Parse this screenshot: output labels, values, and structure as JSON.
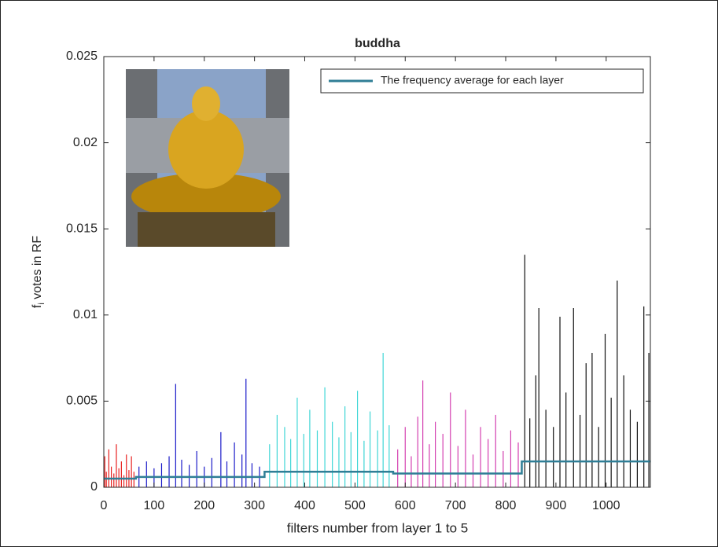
{
  "chart_data": {
    "type": "stem",
    "title": "buddha",
    "xlabel": "filters number from layer 1 to 5",
    "ylabel_parts": [
      "f",
      "i",
      " votes in RF"
    ],
    "xlim": [
      0,
      1088
    ],
    "xticks": [
      0,
      100,
      200,
      300,
      400,
      500,
      600,
      700,
      800,
      900,
      1000
    ],
    "ylim": [
      0,
      0.025
    ],
    "yticks": [
      0,
      0.005,
      0.01,
      0.015,
      0.02,
      0.025
    ],
    "legend": "top-right",
    "series": [
      {
        "type": "stem",
        "color": "#e8211f",
        "x": [
          2,
          5,
          10,
          15,
          20,
          25,
          30,
          35,
          40,
          45,
          50,
          55,
          60
        ],
        "values": [
          0.0018,
          0.0009,
          0.0022,
          0.0012,
          0.0008,
          0.0025,
          0.0011,
          0.0015,
          0.0007,
          0.0019,
          0.001,
          0.0018,
          0.0009
        ]
      },
      {
        "type": "stem",
        "color": "#1a1ac8",
        "x": [
          70,
          85,
          100,
          115,
          130,
          143,
          155,
          170,
          185,
          200,
          215,
          233,
          245,
          260,
          275,
          283,
          295,
          310
        ],
        "values": [
          0.0012,
          0.0015,
          0.0011,
          0.0014,
          0.0018,
          0.006,
          0.0016,
          0.0013,
          0.0021,
          0.0012,
          0.0017,
          0.0032,
          0.0015,
          0.0026,
          0.0019,
          0.0063,
          0.0014,
          0.0012
        ]
      },
      {
        "type": "stem",
        "color": "#3fd6d6",
        "x": [
          330,
          345,
          360,
          372,
          385,
          398,
          410,
          425,
          440,
          455,
          468,
          480,
          492,
          505,
          518,
          530,
          545,
          556,
          568
        ],
        "values": [
          0.0025,
          0.0042,
          0.0035,
          0.0028,
          0.0052,
          0.0031,
          0.0045,
          0.0033,
          0.0058,
          0.0038,
          0.0029,
          0.0047,
          0.0032,
          0.0056,
          0.0027,
          0.0044,
          0.0033,
          0.0078,
          0.0036
        ]
      },
      {
        "type": "stem",
        "color": "#d43fb0",
        "x": [
          585,
          600,
          612,
          625,
          635,
          648,
          660,
          675,
          690,
          705,
          720,
          735,
          750,
          765,
          780,
          795,
          810,
          825
        ],
        "values": [
          0.0022,
          0.0035,
          0.0018,
          0.0041,
          0.0062,
          0.0025,
          0.0038,
          0.0031,
          0.0055,
          0.0024,
          0.0045,
          0.0019,
          0.0035,
          0.0028,
          0.0042,
          0.0021,
          0.0033,
          0.0026
        ]
      },
      {
        "type": "stem",
        "color": "#111111",
        "x": [
          838,
          848,
          860,
          866,
          880,
          895,
          908,
          920,
          935,
          948,
          960,
          972,
          985,
          998,
          1010,
          1022,
          1035,
          1048,
          1062,
          1075,
          1085
        ],
        "values": [
          0.0135,
          0.004,
          0.0065,
          0.0104,
          0.0045,
          0.0035,
          0.0099,
          0.0055,
          0.0104,
          0.0042,
          0.0072,
          0.0078,
          0.0035,
          0.0089,
          0.0052,
          0.012,
          0.0065,
          0.0045,
          0.0038,
          0.0105,
          0.0078
        ]
      },
      {
        "type": "line",
        "name": "The frequency average for each layer",
        "color": "#2f7e96",
        "x": [
          0,
          64,
          64,
          320,
          320,
          576,
          576,
          832,
          832,
          1088
        ],
        "values": [
          0.0005,
          0.0005,
          0.0006,
          0.0006,
          0.0009,
          0.0009,
          0.0008,
          0.0008,
          0.0015,
          0.0015
        ]
      }
    ]
  }
}
